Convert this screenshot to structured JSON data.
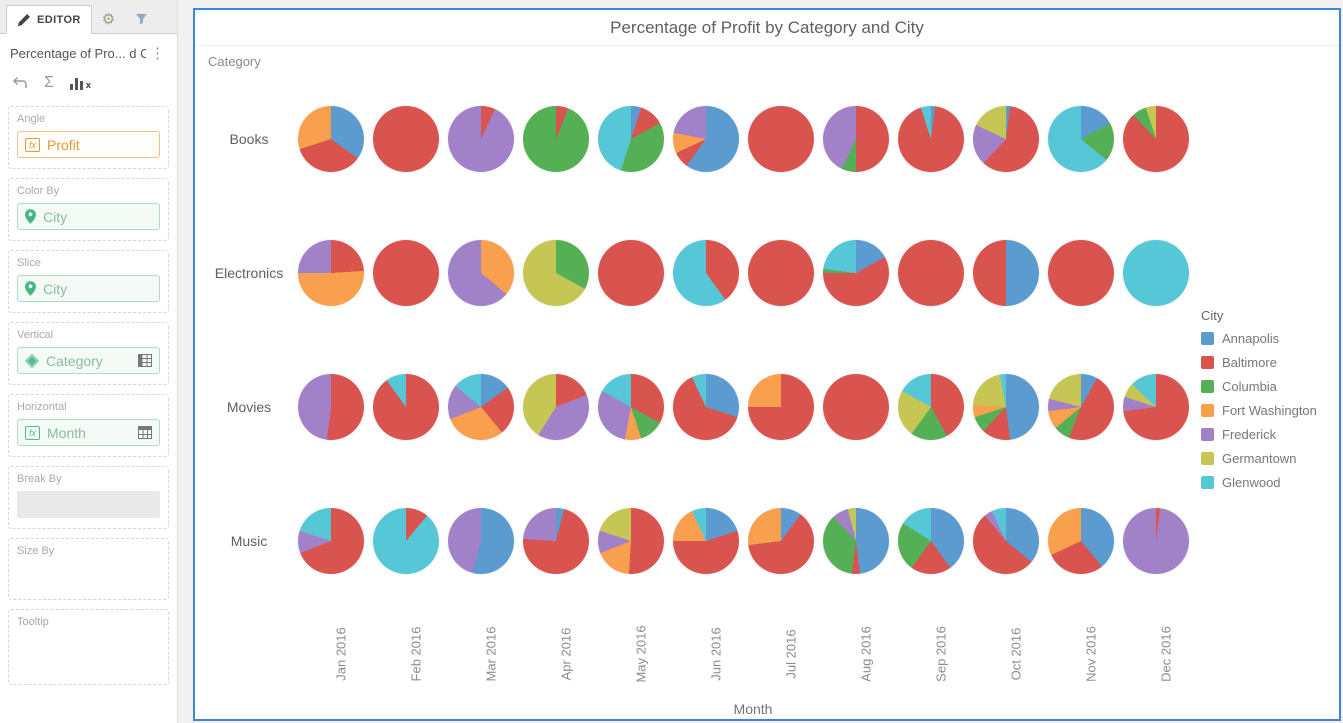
{
  "editor_panel": {
    "tabs": [
      {
        "label": "EDITOR",
        "icon": "pencil-icon",
        "active": true
      },
      {
        "label": "",
        "icon": "gear-icon",
        "active": false
      },
      {
        "label": "",
        "icon": "filter-icon",
        "active": false
      }
    ],
    "title": "Percentage of Pro... d City",
    "menu_icon": "⋮",
    "toolbar": {
      "undo_icon": "undo-arrow",
      "sigma_icon": "Σ",
      "metric_icon": "bar-metric"
    },
    "fields": {
      "angle": {
        "label": "Angle",
        "value": "Profit",
        "icon": "fx-metric-icon"
      },
      "color_by": {
        "label": "Color By",
        "value": "City",
        "icon": "pin-icon"
      },
      "slice": {
        "label": "Slice",
        "value": "City",
        "icon": "pin-icon"
      },
      "vertical": {
        "label": "Vertical",
        "value": "Category",
        "icon": "diamond-icon",
        "right_icon": "grid-icon"
      },
      "horizontal": {
        "label": "Horizontal",
        "value": "Month",
        "icon": "fx-attribute-icon",
        "right_icon": "grid-icon"
      },
      "break_by": {
        "label": "Break By",
        "value": ""
      },
      "size_by": {
        "label": "Size By",
        "value": ""
      },
      "tooltip": {
        "label": "Tooltip",
        "value": ""
      }
    }
  },
  "chart": {
    "title": "Percentage of Profit by Category and City",
    "vertical_axis_title": "Category",
    "horizontal_axis_title": "Month",
    "legend_title": "City",
    "accent_border_color": "#3e86d8"
  },
  "chart_data": {
    "type": "pie",
    "note": "grid of pie charts: Category rows x Month columns, slices clockwise from 12 o'clock in city alphabetical order, values are percent of profit",
    "columns": [
      "Jan 2016",
      "Feb 2016",
      "Mar 2016",
      "Apr 2016",
      "May 2016",
      "Jun 2016",
      "Jul 2016",
      "Aug 2016",
      "Sep 2016",
      "Oct 2016",
      "Nov 2016",
      "Dec 2016"
    ],
    "cities": [
      "Annapolis",
      "Baltimore",
      "Columbia",
      "Fort Washington",
      "Frederick",
      "Germantown",
      "Glenwood"
    ],
    "colors": {
      "Annapolis": "#5b9bd0",
      "Baltimore": "#d9534f",
      "Columbia": "#55b055",
      "Fort Washington": "#f8a04e",
      "Frederick": "#a182c8",
      "Germantown": "#c6c654",
      "Glenwood": "#56c7d6"
    },
    "rows": [
      {
        "category": "Books",
        "pies": [
          [
            [
              "Annapolis",
              35
            ],
            [
              "Baltimore",
              35
            ],
            [
              "Fort Washington",
              30
            ]
          ],
          [
            [
              "Baltimore",
              100
            ]
          ],
          [
            [
              "Baltimore",
              7
            ],
            [
              "Frederick",
              93
            ]
          ],
          [
            [
              "Baltimore",
              6
            ],
            [
              "Columbia",
              94
            ]
          ],
          [
            [
              "Annapolis",
              5
            ],
            [
              "Baltimore",
              12
            ],
            [
              "Columbia",
              38
            ],
            [
              "Glenwood",
              45
            ]
          ],
          [
            [
              "Annapolis",
              60
            ],
            [
              "Baltimore",
              8
            ],
            [
              "Fort Washington",
              10
            ],
            [
              "Frederick",
              22
            ]
          ],
          [
            [
              "Baltimore",
              100
            ]
          ],
          [
            [
              "Baltimore",
              50
            ],
            [
              "Columbia",
              7
            ],
            [
              "Frederick",
              43
            ]
          ],
          [
            [
              "Annapolis",
              2
            ],
            [
              "Baltimore",
              93
            ],
            [
              "Glenwood",
              5
            ]
          ],
          [
            [
              "Annapolis",
              2
            ],
            [
              "Baltimore",
              60
            ],
            [
              "Frederick",
              20
            ],
            [
              "Germantown",
              18
            ]
          ],
          [
            [
              "Annapolis",
              17
            ],
            [
              "Columbia",
              19
            ],
            [
              "Glenwood",
              64
            ]
          ],
          [
            [
              "Baltimore",
              88
            ],
            [
              "Columbia",
              7
            ],
            [
              "Germantown",
              5
            ]
          ]
        ]
      },
      {
        "category": "Electronics",
        "pies": [
          [
            [
              "Baltimore",
              24
            ],
            [
              "Fort Washington",
              51
            ],
            [
              "Frederick",
              25
            ]
          ],
          [
            [
              "Baltimore",
              100
            ]
          ],
          [
            [
              "Fort Washington",
              36
            ],
            [
              "Frederick",
              64
            ]
          ],
          [
            [
              "Columbia",
              33
            ],
            [
              "Germantown",
              67
            ]
          ],
          [
            [
              "Baltimore",
              100
            ]
          ],
          [
            [
              "Baltimore",
              40
            ],
            [
              "Glenwood",
              60
            ]
          ],
          [
            [
              "Baltimore",
              100
            ]
          ],
          [
            [
              "Annapolis",
              17
            ],
            [
              "Baltimore",
              58
            ],
            [
              "Columbia",
              2
            ],
            [
              "Glenwood",
              23
            ]
          ],
          [
            [
              "Baltimore",
              100
            ]
          ],
          [
            [
              "Annapolis",
              50
            ],
            [
              "Baltimore",
              50
            ]
          ],
          [
            [
              "Baltimore",
              100
            ]
          ],
          [
            [
              "Glenwood",
              100
            ]
          ]
        ]
      },
      {
        "category": "Movies",
        "pies": [
          [
            [
              "Baltimore",
              52
            ],
            [
              "Frederick",
              48
            ]
          ],
          [
            [
              "Baltimore",
              90
            ],
            [
              "Glenwood",
              10
            ]
          ],
          [
            [
              "Annapolis",
              15
            ],
            [
              "Baltimore",
              24
            ],
            [
              "Fort Washington",
              30
            ],
            [
              "Frederick",
              17
            ],
            [
              "Glenwood",
              14
            ]
          ],
          [
            [
              "Baltimore",
              19
            ],
            [
              "Frederick",
              40
            ],
            [
              "Germantown",
              41
            ]
          ],
          [
            [
              "Baltimore",
              33
            ],
            [
              "Columbia",
              12
            ],
            [
              "Fort Washington",
              8
            ],
            [
              "Frederick",
              30
            ],
            [
              "Glenwood",
              17
            ]
          ],
          [
            [
              "Annapolis",
              30
            ],
            [
              "Baltimore",
              63
            ],
            [
              "Glenwood",
              7
            ]
          ],
          [
            [
              "Baltimore",
              75
            ],
            [
              "Fort Washington",
              25
            ]
          ],
          [
            [
              "Baltimore",
              100
            ]
          ],
          [
            [
              "Baltimore",
              42
            ],
            [
              "Columbia",
              18
            ],
            [
              "Germantown",
              23
            ],
            [
              "Glenwood",
              17
            ]
          ],
          [
            [
              "Annapolis",
              48
            ],
            [
              "Baltimore",
              14
            ],
            [
              "Columbia",
              8
            ],
            [
              "Fort Washington",
              6
            ],
            [
              "Germantown",
              21
            ],
            [
              "Glenwood",
              3
            ]
          ],
          [
            [
              "Annapolis",
              8
            ],
            [
              "Baltimore",
              48
            ],
            [
              "Columbia",
              8
            ],
            [
              "Fort Washington",
              9
            ],
            [
              "Frederick",
              6
            ],
            [
              "Germantown",
              21
            ]
          ],
          [
            [
              "Baltimore",
              73
            ],
            [
              "Frederick",
              7
            ],
            [
              "Germantown",
              7
            ],
            [
              "Glenwood",
              13
            ]
          ]
        ]
      },
      {
        "category": "Music",
        "pies": [
          [
            [
              "Baltimore",
              69
            ],
            [
              "Frederick",
              11
            ],
            [
              "Glenwood",
              20
            ]
          ],
          [
            [
              "Baltimore",
              11
            ],
            [
              "Glenwood",
              89
            ]
          ],
          [
            [
              "Annapolis",
              54
            ],
            [
              "Frederick",
              46
            ]
          ],
          [
            [
              "Annapolis",
              4
            ],
            [
              "Baltimore",
              72
            ],
            [
              "Frederick",
              24
            ]
          ],
          [
            [
              "Baltimore",
              51
            ],
            [
              "Fort Washington",
              18
            ],
            [
              "Frederick",
              11
            ],
            [
              "Germantown",
              20
            ]
          ],
          [
            [
              "Annapolis",
              20
            ],
            [
              "Baltimore",
              55
            ],
            [
              "Fort Washington",
              18
            ],
            [
              "Glenwood",
              7
            ]
          ],
          [
            [
              "Annapolis",
              10
            ],
            [
              "Baltimore",
              63
            ],
            [
              "Fort Washington",
              27
            ]
          ],
          [
            [
              "Annapolis",
              48
            ],
            [
              "Baltimore",
              4
            ],
            [
              "Columbia",
              36
            ],
            [
              "Frederick",
              8
            ],
            [
              "Germantown",
              4
            ]
          ],
          [
            [
              "Annapolis",
              40
            ],
            [
              "Baltimore",
              20
            ],
            [
              "Columbia",
              24
            ],
            [
              "Glenwood",
              16
            ]
          ],
          [
            [
              "Annapolis",
              36
            ],
            [
              "Baltimore",
              53
            ],
            [
              "Frederick",
              4
            ],
            [
              "Glenwood",
              7
            ]
          ],
          [
            [
              "Annapolis",
              39
            ],
            [
              "Baltimore",
              29
            ],
            [
              "Fort Washington",
              32
            ]
          ],
          [
            [
              "Baltimore",
              2
            ],
            [
              "Frederick",
              98
            ]
          ]
        ]
      }
    ]
  }
}
